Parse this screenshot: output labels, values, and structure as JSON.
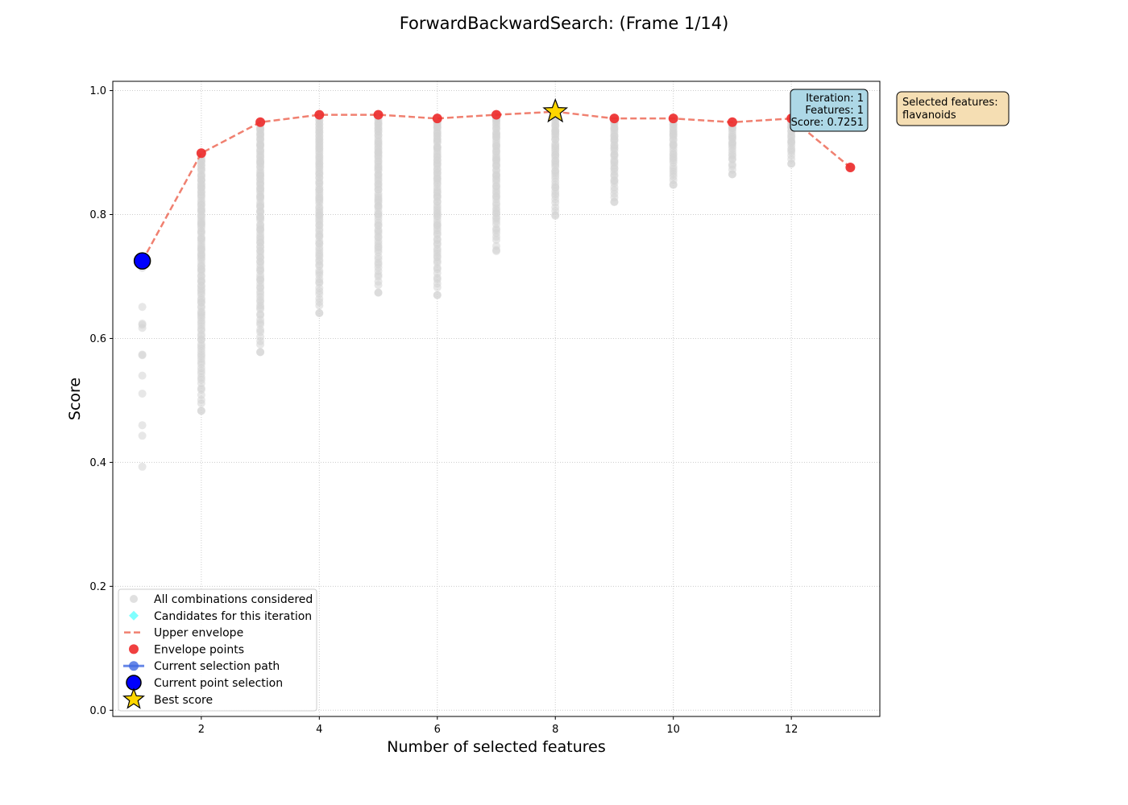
{
  "chart_data": {
    "type": "scatter",
    "title": "ForwardBackwardSearch: (Frame 1/14)",
    "xlabel": "Number of selected features",
    "ylabel": "Score",
    "xlim": [
      0.5,
      13.5
    ],
    "ylim": [
      -0.01,
      1.015
    ],
    "xticks": [
      2,
      4,
      6,
      8,
      10,
      12
    ],
    "yticks": [
      0.0,
      0.2,
      0.4,
      0.6,
      0.8,
      1.0
    ],
    "grid": true,
    "legend_position": "lower-left",
    "colors": {
      "all_combinations": "#d3d3d3",
      "candidates": "#7fffff",
      "upper_envelope": "#f08070",
      "envelope_points": "#ee2b2b",
      "selection_path": "#4169e1",
      "current_point": "#0000ff",
      "best_score": "#ffd700",
      "info_box": "#add8e6",
      "selected_box": "#f5deb3"
    },
    "all_combinations": [
      {
        "x": 1,
        "min": 0.393,
        "max": 0.725,
        "values": [
          0.393,
          0.443,
          0.46,
          0.511,
          0.54,
          0.573,
          0.574,
          0.617,
          0.622,
          0.624,
          0.651,
          0.714,
          0.725
        ]
      },
      {
        "x": 2,
        "min": 0.483,
        "max": 0.899
      },
      {
        "x": 3,
        "min": 0.578,
        "max": 0.949
      },
      {
        "x": 4,
        "min": 0.641,
        "max": 0.961
      },
      {
        "x": 5,
        "min": 0.674,
        "max": 0.961
      },
      {
        "x": 6,
        "min": 0.67,
        "max": 0.955
      },
      {
        "x": 7,
        "min": 0.741,
        "max": 0.961
      },
      {
        "x": 8,
        "min": 0.798,
        "max": 0.966
      },
      {
        "x": 9,
        "min": 0.82,
        "max": 0.955
      },
      {
        "x": 10,
        "min": 0.848,
        "max": 0.955
      },
      {
        "x": 11,
        "min": 0.865,
        "max": 0.949
      },
      {
        "x": 12,
        "min": 0.882,
        "max": 0.955
      },
      {
        "x": 13,
        "min": 0.876,
        "max": 0.876
      }
    ],
    "envelope": {
      "x": [
        1,
        2,
        3,
        4,
        5,
        6,
        7,
        8,
        9,
        10,
        11,
        12,
        13
      ],
      "y": [
        0.725,
        0.899,
        0.949,
        0.961,
        0.961,
        0.955,
        0.961,
        0.966,
        0.955,
        0.955,
        0.949,
        0.955,
        0.876
      ]
    },
    "current_point": {
      "x": 1,
      "y": 0.7251
    },
    "best_score": {
      "x": 8,
      "y": 0.966
    },
    "legend": [
      {
        "key": "all",
        "label": "All combinations considered"
      },
      {
        "key": "cand",
        "label": "Candidates for this iteration"
      },
      {
        "key": "env",
        "label": "Upper envelope"
      },
      {
        "key": "envpts",
        "label": "Envelope points"
      },
      {
        "key": "path",
        "label": "Current selection path"
      },
      {
        "key": "cur",
        "label": "Current point selection"
      },
      {
        "key": "best",
        "label": "Best score"
      }
    ],
    "info_box": {
      "iteration": "Iteration: 1",
      "features": "Features: 1",
      "score": "Score: 0.7251"
    },
    "selected_box": {
      "heading": "Selected features:",
      "features": "flavanoids"
    }
  }
}
